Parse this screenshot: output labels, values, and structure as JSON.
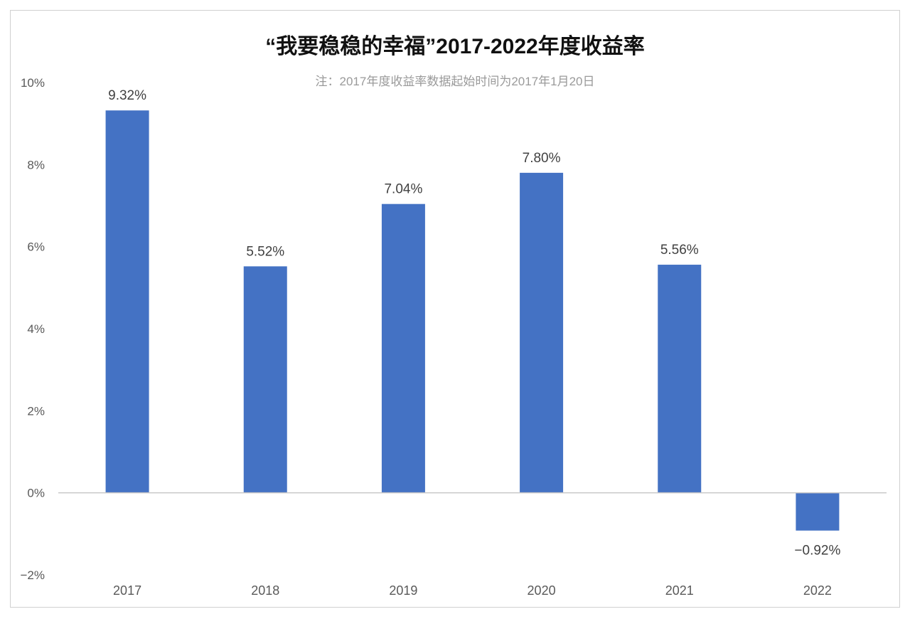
{
  "chart_data": {
    "type": "bar",
    "title": "“我要稳稳的幸福”2017-2022年度收益率",
    "subtitle": "注：2017年度收益率数据起始时间为2017年1月20日",
    "categories": [
      "2017",
      "2018",
      "2019",
      "2020",
      "2021",
      "2022"
    ],
    "values": [
      9.32,
      5.52,
      7.04,
      7.8,
      5.56,
      -0.92
    ],
    "data_labels": [
      "9.32%",
      "5.52%",
      "7.04%",
      "7.80%",
      "5.56%",
      "−0.92%"
    ],
    "y_ticks": [
      10,
      8,
      6,
      4,
      2,
      0,
      -2
    ],
    "y_tick_labels": [
      "10%",
      "8%",
      "6%",
      "4%",
      "2%",
      "0%",
      "−2%"
    ],
    "ylim": [
      -2,
      10
    ],
    "unit": "%",
    "grid": false,
    "bar_color": "#4472c4"
  }
}
